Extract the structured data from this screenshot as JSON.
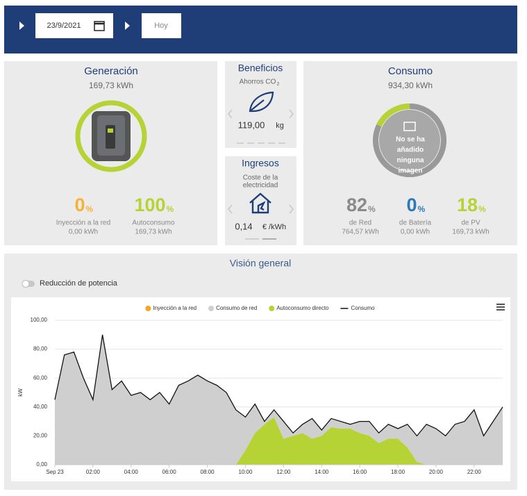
{
  "header": {
    "date": "23/9/2021",
    "today_button": "Hoy"
  },
  "generacion": {
    "title": "Generación",
    "total": "169,73 kWh",
    "ring": 100,
    "metrics": [
      {
        "value": 0,
        "unit": "%",
        "label": "Inyección a la red",
        "sub": "0,00 kWh",
        "color": "#f5b335"
      },
      {
        "value": 100,
        "unit": "%",
        "label": "Autoconsumo",
        "sub": "169,73 kWh",
        "color": "#b5d334"
      }
    ]
  },
  "beneficios": {
    "title": "Beneficios",
    "subtitle": "Ahorros CO",
    "subscript": "2",
    "value": "119,00",
    "unit": "kg"
  },
  "ingresos": {
    "title": "Ingresos",
    "subtitle": [
      "Coste de la",
      "electricidad"
    ],
    "value": "0,14",
    "unit": "€ /kWh"
  },
  "consumo": {
    "title": "Consumo",
    "total": "934,30 kWh",
    "image_note": [
      "No se ha",
      "añadido",
      "ninguna",
      "imagen"
    ],
    "metrics": [
      {
        "value": 82,
        "unit": "%",
        "label": "de Red",
        "sub": "764,57 kWh",
        "color": "#8a8a8a"
      },
      {
        "value": 0,
        "unit": "%",
        "label": "de Batería",
        "sub": "0,00 kWh",
        "color": "#2a78b7"
      },
      {
        "value": 18,
        "unit": "%",
        "label": "de PV",
        "sub": "169,73 kWh",
        "color": "#b5d334"
      }
    ]
  },
  "vision": {
    "title": "Visión general",
    "toggle": "Reducción de potencia"
  },
  "chart_data": {
    "type": "area",
    "ylabel": "kW",
    "x": [
      0,
      0.5,
      1,
      1.5,
      2,
      2.5,
      3,
      3.5,
      4,
      4.5,
      5,
      5.5,
      6,
      6.5,
      7,
      7.5,
      8,
      8.5,
      9,
      9.5,
      10,
      10.5,
      11,
      11.5,
      12,
      12.5,
      13,
      13.5,
      14,
      14.5,
      15,
      15.5,
      16,
      16.5,
      17,
      17.5,
      18,
      18.5,
      19,
      19.5,
      20,
      20.5,
      21,
      21.5,
      22,
      22.5,
      23,
      23.5
    ],
    "xlim": [
      0,
      23.5
    ],
    "xticks": [
      {
        "value": 0,
        "label": "Sep 23"
      },
      {
        "value": 2,
        "label": "02:00"
      },
      {
        "value": 4,
        "label": "04:00"
      },
      {
        "value": 6,
        "label": "06:00"
      },
      {
        "value": 8,
        "label": "08:00"
      },
      {
        "value": 10,
        "label": "10:00"
      },
      {
        "value": 12,
        "label": "12:00"
      },
      {
        "value": 14,
        "label": "14:00"
      },
      {
        "value": 16,
        "label": "16:00"
      },
      {
        "value": 18,
        "label": "18:00"
      },
      {
        "value": 20,
        "label": "20:00"
      },
      {
        "value": 22,
        "label": "22:00"
      }
    ],
    "ylim": [
      0,
      100
    ],
    "yticks": [
      {
        "value": 0,
        "label": "0,00"
      },
      {
        "value": 20,
        "label": "20,00"
      },
      {
        "value": 40,
        "label": "40,00"
      },
      {
        "value": 60,
        "label": "60,00"
      },
      {
        "value": 80,
        "label": "80,00"
      },
      {
        "value": 100,
        "label": "100,00"
      }
    ],
    "grid": true,
    "legend": "top",
    "series": [
      {
        "name": "Inyección a la red",
        "color": "#f5a623",
        "kind": "area",
        "values": [
          0,
          0,
          0,
          0,
          0,
          0,
          0,
          0,
          0,
          0,
          0,
          0,
          0,
          0,
          0,
          0,
          0,
          0,
          0,
          0,
          0,
          0,
          0,
          0,
          0,
          0,
          0,
          0,
          0,
          0,
          0,
          0,
          0,
          0,
          0,
          0,
          0,
          0,
          0,
          0,
          0,
          0,
          0,
          0,
          0,
          0,
          0,
          0
        ]
      },
      {
        "name": "Consumo de red",
        "color": "#cfcfcf",
        "kind": "area",
        "values": [
          45,
          76,
          78,
          60,
          45,
          90,
          52,
          58,
          48,
          50,
          45,
          50,
          42,
          55,
          58,
          62,
          58,
          55,
          50,
          38,
          23,
          20,
          2,
          5,
          12,
          2,
          6,
          14,
          4,
          6,
          5,
          3,
          8,
          10,
          7,
          10,
          7,
          16,
          18,
          28,
          25,
          20,
          28,
          30,
          38,
          20,
          30,
          40
        ]
      },
      {
        "name": "Autoconsumo directo",
        "color": "#b5d334",
        "kind": "area",
        "values": [
          0,
          0,
          0,
          0,
          0,
          0,
          0,
          0,
          0,
          0,
          0,
          0,
          0,
          0,
          0,
          0,
          0,
          0,
          0,
          0,
          10,
          22,
          28,
          33,
          18,
          20,
          22,
          18,
          20,
          26,
          25,
          25,
          22,
          20,
          15,
          18,
          18,
          12,
          2,
          0,
          0,
          0,
          0,
          0,
          0,
          0,
          0,
          0
        ]
      },
      {
        "name": "Consumo",
        "color": "#111111",
        "kind": "line",
        "values": [
          45,
          76,
          78,
          60,
          45,
          90,
          52,
          58,
          48,
          50,
          45,
          50,
          42,
          55,
          58,
          62,
          58,
          55,
          50,
          38,
          33,
          42,
          30,
          38,
          30,
          22,
          28,
          32,
          24,
          32,
          30,
          28,
          30,
          30,
          22,
          28,
          25,
          28,
          20,
          28,
          25,
          20,
          28,
          30,
          38,
          20,
          30,
          40
        ]
      }
    ]
  }
}
